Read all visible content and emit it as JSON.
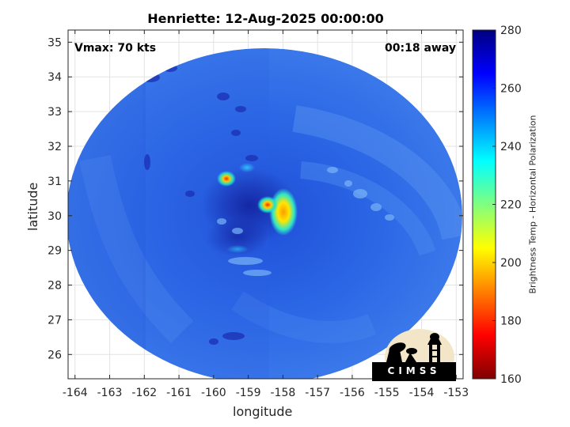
{
  "title": "Henriette: 12-Aug-2025 00:00:00",
  "annotations": {
    "vmax": "Vmax: 70 kts",
    "time_offset": "00:18 away"
  },
  "logo_text": "CIMSS",
  "colors": {
    "background_scene": "#2f6ae8",
    "core_warm": "#ffcc00",
    "core_hot": "#ff2200"
  },
  "chart_data": {
    "type": "heatmap",
    "title": "Henriette: 12-Aug-2025 00:00:00",
    "xlabel": "longitude",
    "ylabel": "latitude",
    "xlim": [
      -164.2,
      -152.8
    ],
    "ylim": [
      25.3,
      35.35
    ],
    "x_ticks": [
      "-164",
      "-163",
      "-162",
      "-161",
      "-160",
      "-159",
      "-158",
      "-157",
      "-156",
      "-155",
      "-154",
      "-153"
    ],
    "y_ticks": [
      "26",
      "27",
      "28",
      "29",
      "30",
      "31",
      "32",
      "33",
      "34",
      "35"
    ],
    "grid": true,
    "colorbar": {
      "label": "Brightness Temp - Horizontal Polarization",
      "range": [
        160,
        280
      ],
      "ticks": [
        "160",
        "180",
        "200",
        "220",
        "240",
        "260",
        "280"
      ],
      "colormap": "jet"
    },
    "storm_center": {
      "lon": -158.7,
      "lat": 30.2
    },
    "swath_center": {
      "lon": -158.5,
      "lat": 30.3
    },
    "warm_features": [
      {
        "lon": -159.5,
        "lat": 31.1,
        "tb": 185
      },
      {
        "lon": -158.8,
        "lat": 30.3,
        "tb": 175
      },
      {
        "lon": -158.1,
        "lat": 29.8,
        "tb": 205
      },
      {
        "lon": -158.6,
        "lat": 31.4,
        "tb": 235
      }
    ]
  }
}
